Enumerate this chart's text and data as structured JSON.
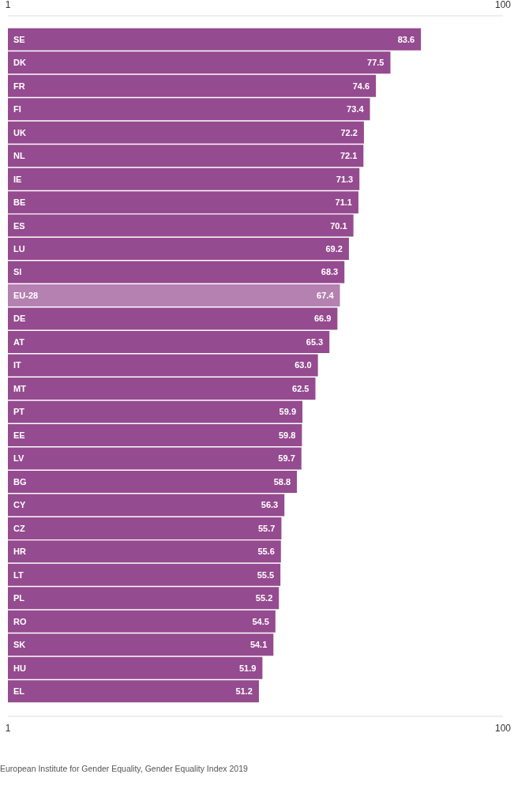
{
  "chart_data": {
    "type": "bar",
    "orientation": "horizontal",
    "categories": [
      "SE",
      "DK",
      "FR",
      "FI",
      "UK",
      "NL",
      "IE",
      "BE",
      "ES",
      "LU",
      "SI",
      "EU-28",
      "DE",
      "AT",
      "IT",
      "MT",
      "PT",
      "EE",
      "LV",
      "BG",
      "CY",
      "CZ",
      "HR",
      "LT",
      "PL",
      "RO",
      "SK",
      "HU",
      "EL"
    ],
    "values": [
      83.6,
      77.5,
      74.6,
      73.4,
      72.2,
      72.1,
      71.3,
      71.1,
      70.1,
      69.2,
      68.3,
      67.4,
      66.9,
      65.3,
      63.0,
      62.5,
      59.9,
      59.8,
      59.7,
      58.8,
      56.3,
      55.7,
      55.6,
      55.5,
      55.2,
      54.5,
      54.1,
      51.9,
      51.2
    ],
    "value_labels": [
      "83.6",
      "77.5",
      "74.6",
      "73.4",
      "72.2",
      "72.1",
      "71.3",
      "71.1",
      "70.1",
      "69.2",
      "68.3",
      "67.4",
      "66.9",
      "65.3",
      "63.0",
      "62.5",
      "59.9",
      "59.8",
      "59.7",
      "58.8",
      "56.3",
      "55.7",
      "55.6",
      "55.5",
      "55.2",
      "54.5",
      "54.1",
      "51.9",
      "51.2"
    ],
    "colors": [
      "#954b8f",
      "#954b8f",
      "#954b8f",
      "#954b8f",
      "#954b8f",
      "#954b8f",
      "#954b8f",
      "#954b8f",
      "#954b8f",
      "#954b8f",
      "#954b8f",
      "#b581b1",
      "#954b8f",
      "#954b8f",
      "#954b8f",
      "#954b8f",
      "#954b8f",
      "#954b8f",
      "#954b8f",
      "#954b8f",
      "#954b8f",
      "#954b8f",
      "#954b8f",
      "#954b8f",
      "#954b8f",
      "#954b8f",
      "#954b8f",
      "#954b8f",
      "#954b8f"
    ],
    "xlim": [
      1,
      100
    ],
    "xticks": [
      1,
      100
    ],
    "x2lim": [
      1,
      100
    ],
    "x2ticks": [
      1,
      100
    ],
    "annotations": [
      "European Institute for Gender Equality, Gender Equality Index 2019"
    ]
  }
}
